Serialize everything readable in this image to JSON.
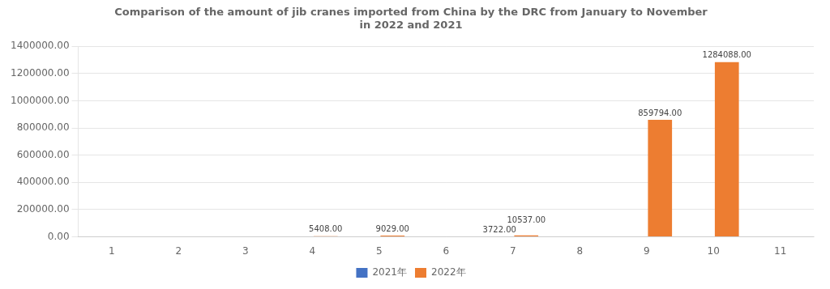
{
  "chart_data": {
    "type": "bar",
    "title": "Comparison of the amount of jib cranes imported from China by the DRC from January to November\nin 2022 and 2021",
    "categories": [
      "1",
      "2",
      "3",
      "4",
      "5",
      "6",
      "7",
      "8",
      "9",
      "10",
      "11"
    ],
    "series": [
      {
        "name": "2021年",
        "color": "#4472C4",
        "values": [
          0,
          0,
          0,
          0,
          0,
          0,
          3722.0,
          0,
          0,
          0,
          0
        ],
        "value_labels": [
          null,
          null,
          null,
          null,
          null,
          null,
          "3722.00",
          null,
          null,
          null,
          null
        ]
      },
      {
        "name": "2022年",
        "color": "#ED7D31",
        "values": [
          0,
          0,
          0,
          5408.0,
          9029.0,
          0,
          10537.0,
          0,
          859794.0,
          1284088.0,
          0
        ],
        "value_labels": [
          null,
          null,
          null,
          "5408.00",
          "9029.00",
          null,
          "10537.00",
          null,
          "859794.00",
          "1284088.00",
          null
        ]
      }
    ],
    "ylim": [
      0,
      1400000
    ],
    "yticks": [
      {
        "value": 0,
        "label": "0.00"
      },
      {
        "value": 200000,
        "label": "200000.00"
      },
      {
        "value": 400000,
        "label": "400000.00"
      },
      {
        "value": 600000,
        "label": "600000.00"
      },
      {
        "value": 800000,
        "label": "800000.00"
      },
      {
        "value": 1000000,
        "label": "1000000.00"
      },
      {
        "value": 1200000,
        "label": "1200000.00"
      },
      {
        "value": 1400000,
        "label": "1400000.00"
      }
    ],
    "grid": true,
    "legend": "bottom",
    "data_labels": true
  }
}
